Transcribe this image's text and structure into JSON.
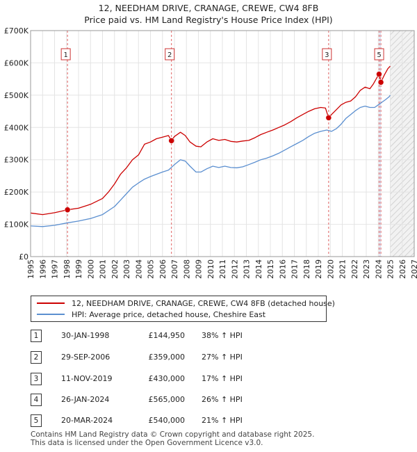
{
  "title_line1": "12, NEEDHAM DRIVE, CRANAGE, CREWE, CW4 8FB",
  "title_line2": "Price paid vs. HM Land Registry's House Price Index (HPI)",
  "legend": {
    "property": "12, NEEDHAM DRIVE, CRANAGE, CREWE, CW4 8FB (detached house)",
    "hpi": "HPI: Average price, detached house, Cheshire East"
  },
  "colors": {
    "property": "#cc0000",
    "hpi": "#5b8fd0",
    "marker_line": "#e06060",
    "shade": "#dde6f5"
  },
  "sales": [
    {
      "num": "1",
      "date": "30-JAN-1998",
      "price": "£144,950",
      "hpi": "38% ↑ HPI"
    },
    {
      "num": "2",
      "date": "29-SEP-2006",
      "price": "£359,000",
      "hpi": "27% ↑ HPI"
    },
    {
      "num": "3",
      "date": "11-NOV-2019",
      "price": "£430,000",
      "hpi": "17% ↑ HPI"
    },
    {
      "num": "4",
      "date": "26-JAN-2024",
      "price": "£565,000",
      "hpi": "26% ↑ HPI"
    },
    {
      "num": "5",
      "date": "20-MAR-2024",
      "price": "£540,000",
      "hpi": "21% ↑ HPI"
    }
  ],
  "footer_line1": "Contains HM Land Registry data © Crown copyright and database right 2025.",
  "footer_line2": "This data is licensed under the Open Government Licence v3.0.",
  "chart_data": {
    "type": "line",
    "title": "Price paid vs. HM Land Registry's House Price Index (HPI)",
    "xlim": [
      1995,
      2027
    ],
    "ylim": [
      0,
      700000
    ],
    "yticks": [
      0,
      100000,
      200000,
      300000,
      400000,
      500000,
      600000,
      700000
    ],
    "ytick_labels": [
      "£0",
      "£100K",
      "£200K",
      "£300K",
      "£400K",
      "£500K",
      "£600K",
      "£700K"
    ],
    "xticks": [
      1995,
      1996,
      1997,
      1998,
      1999,
      2000,
      2001,
      2002,
      2003,
      2004,
      2005,
      2006,
      2007,
      2008,
      2009,
      2010,
      2011,
      2012,
      2013,
      2014,
      2015,
      2016,
      2017,
      2018,
      2019,
      2020,
      2021,
      2022,
      2023,
      2024,
      2025,
      2026,
      2027
    ],
    "forecast_start": 2025.0,
    "series": [
      {
        "name": "12, NEEDHAM DRIVE, CRANAGE, CREWE, CW4 8FB (detached house)",
        "x": [
          1995.0,
          1996.0,
          1997.0,
          1998.08,
          1999.0,
          2000.0,
          2001.0,
          2001.5,
          2002.0,
          2002.5,
          2003.0,
          2003.5,
          2004.0,
          2004.5,
          2005.0,
          2005.5,
          2006.0,
          2006.5,
          2006.75,
          2007.0,
          2007.5,
          2007.9,
          2008.3,
          2008.8,
          2009.2,
          2009.7,
          2010.2,
          2010.7,
          2011.2,
          2011.7,
          2012.2,
          2012.7,
          2013.2,
          2013.7,
          2014.2,
          2014.7,
          2015.2,
          2015.7,
          2016.2,
          2016.7,
          2017.2,
          2017.7,
          2018.2,
          2018.7,
          2019.2,
          2019.6,
          2019.86,
          2020.1,
          2020.5,
          2020.9,
          2021.3,
          2021.7,
          2022.1,
          2022.5,
          2022.9,
          2023.3,
          2023.6,
          2023.9,
          2024.07,
          2024.22,
          2024.5,
          2024.8,
          2025.0
        ],
        "values": [
          135000,
          130000,
          136000,
          144950,
          150000,
          162000,
          180000,
          200000,
          225000,
          255000,
          275000,
          300000,
          315000,
          348000,
          355000,
          365000,
          370000,
          375000,
          359000,
          372000,
          385000,
          375000,
          355000,
          342000,
          340000,
          355000,
          365000,
          360000,
          363000,
          357000,
          355000,
          358000,
          360000,
          368000,
          378000,
          385000,
          392000,
          400000,
          408000,
          418000,
          430000,
          440000,
          450000,
          458000,
          462000,
          460000,
          430000,
          440000,
          455000,
          470000,
          478000,
          482000,
          495000,
          515000,
          525000,
          520000,
          535000,
          555000,
          565000,
          540000,
          562000,
          582000,
          590000
        ]
      },
      {
        "name": "HPI: Average price, detached house, Cheshire East",
        "x": [
          1995.0,
          1996.0,
          1997.0,
          1998.0,
          1999.0,
          2000.0,
          2001.0,
          2002.0,
          2002.5,
          2003.0,
          2003.5,
          2004.0,
          2004.5,
          2005.0,
          2005.5,
          2006.0,
          2006.5,
          2007.0,
          2007.5,
          2007.9,
          2008.3,
          2008.8,
          2009.2,
          2009.7,
          2010.2,
          2010.7,
          2011.2,
          2011.7,
          2012.2,
          2012.7,
          2013.2,
          2013.7,
          2014.2,
          2014.7,
          2015.2,
          2015.7,
          2016.2,
          2016.7,
          2017.2,
          2017.7,
          2018.2,
          2018.7,
          2019.2,
          2019.7,
          2020.1,
          2020.5,
          2020.9,
          2021.3,
          2021.7,
          2022.1,
          2022.5,
          2022.9,
          2023.3,
          2023.7,
          2024.0,
          2024.3,
          2024.6,
          2024.9,
          2025.0
        ],
        "values": [
          95000,
          93000,
          97000,
          104000,
          110000,
          118000,
          130000,
          155000,
          175000,
          195000,
          215000,
          228000,
          240000,
          248000,
          255000,
          262000,
          268000,
          285000,
          300000,
          296000,
          280000,
          262000,
          262000,
          272000,
          280000,
          276000,
          280000,
          276000,
          275000,
          278000,
          285000,
          292000,
          300000,
          305000,
          312000,
          320000,
          330000,
          340000,
          350000,
          360000,
          372000,
          382000,
          388000,
          392000,
          388000,
          396000,
          410000,
          428000,
          440000,
          452000,
          462000,
          466000,
          462000,
          462000,
          470000,
          478000,
          486000,
          495000,
          500000
        ]
      }
    ],
    "sale_markers": [
      {
        "label": "1",
        "x": 1998.08,
        "value": 144950
      },
      {
        "label": "2",
        "x": 2006.75,
        "value": 359000
      },
      {
        "label": "3",
        "x": 2019.86,
        "value": 430000
      },
      {
        "label": "4",
        "x": 2024.07,
        "value": 565000
      },
      {
        "label": "5",
        "x": 2024.22,
        "value": 540000
      }
    ],
    "marker_boxes": [
      "1",
      "2",
      "3",
      "5"
    ]
  }
}
